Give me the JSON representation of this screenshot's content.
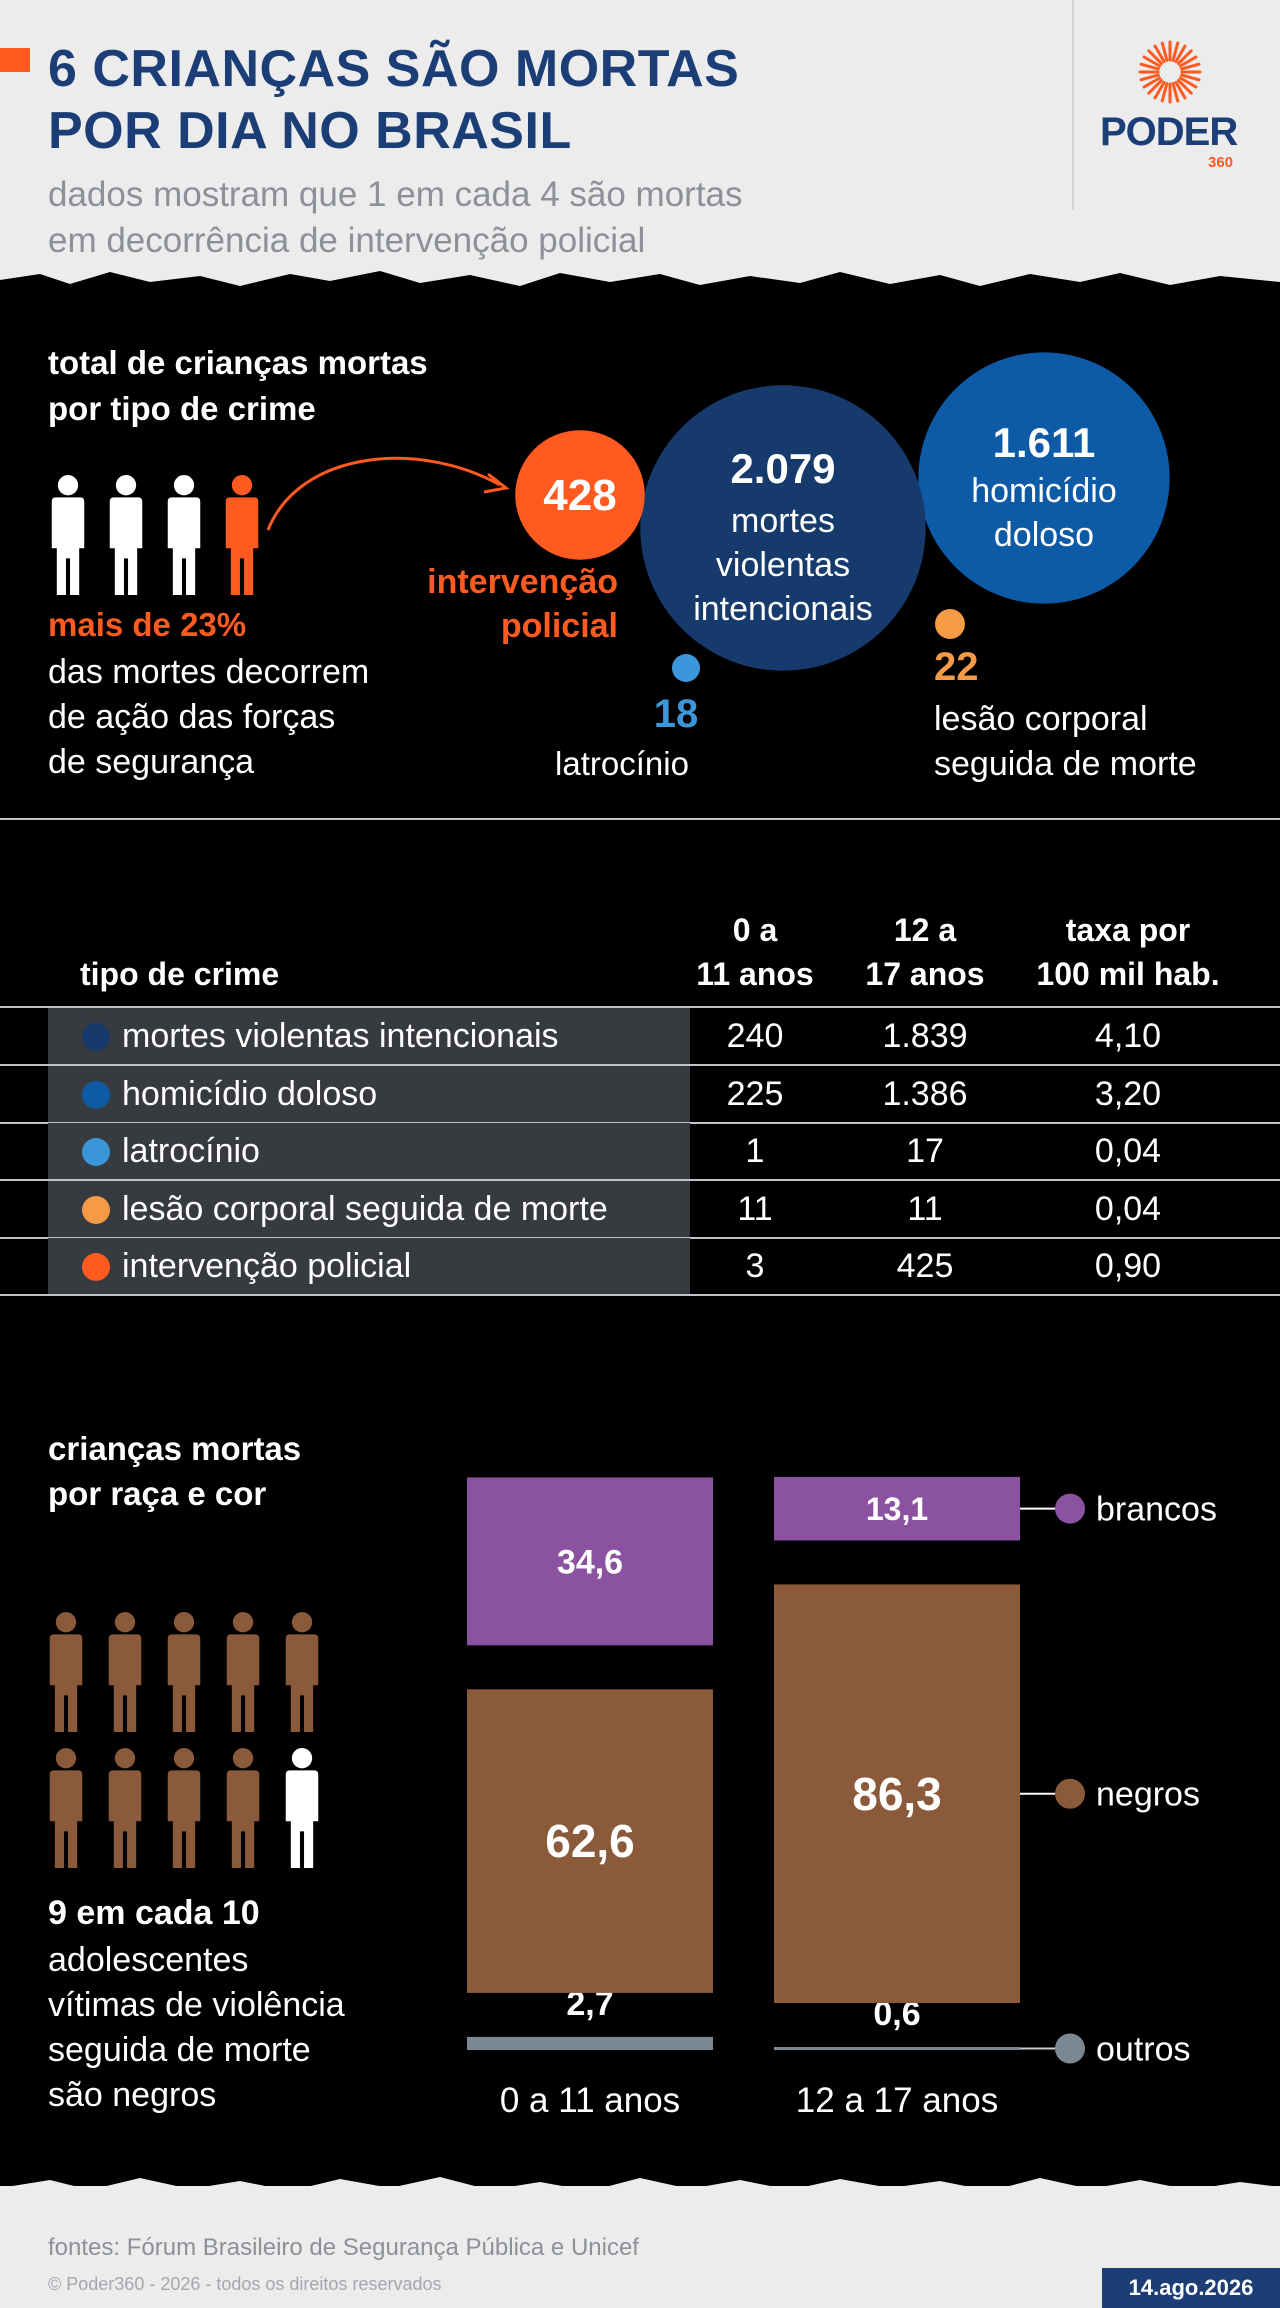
{
  "header": {
    "title_line1": "6 CRIANÇAS SÃO MORTAS",
    "title_line2": "POR DIA NO BRASIL",
    "subtitle_line1": "dados mostram que 1 em cada 4 são mortas",
    "subtitle_line2": "em decorrência de intervenção policial",
    "logo_word": "PODER",
    "logo_number": "360"
  },
  "colors": {
    "navy": "#1c3e77",
    "blue_dark": "#163a6b",
    "blue": "#0d5aa7",
    "blue_light": "#3b97da",
    "orange_light": "#f59a45",
    "orange": "#ff5a1f",
    "purple": "#8a52a0",
    "brown": "#8a5a3b",
    "grey": "#7c8891"
  },
  "section_crime": {
    "heading_line1": "total de crianças mortas",
    "heading_line2": "por tipo de crime",
    "highlight": "mais de 23%",
    "note_line1": "das mortes decorrem",
    "note_line2": "de ação das forças",
    "note_line3": "de segurança",
    "icon": "person-icon"
  },
  "table": {
    "headers": {
      "type": "tipo de crime",
      "col1_line1": "0 a",
      "col1_line2": "11 anos",
      "col2_line1": "12 a",
      "col2_line2": "17 anos",
      "col3_line1": "taxa por",
      "col3_line2": "100 mil hab."
    },
    "rows": [
      {
        "label": "mortes violentas intencionais",
        "a": "240",
        "b": "1.839",
        "rate": "4,10",
        "color": "#163a6b"
      },
      {
        "label": "homicídio doloso",
        "a": "225",
        "b": "1.386",
        "rate": "3,20",
        "color": "#0d5aa7"
      },
      {
        "label": "latrocínio",
        "a": "1",
        "b": "17",
        "rate": "0,04",
        "color": "#3b97da"
      },
      {
        "label": "lesão corporal seguida de morte",
        "a": "11",
        "b": "11",
        "rate": "0,04",
        "color": "#f59a45"
      },
      {
        "label": "intervenção policial",
        "a": "3",
        "b": "425",
        "rate": "0,90",
        "color": "#ff5a1f"
      }
    ]
  },
  "section_race": {
    "heading_line1": "crianças mortas",
    "heading_line2": "por raça e cor",
    "highlight": "9 em cada 10",
    "note_line1": "adolescentes",
    "note_line2": "vítimas de violência",
    "note_line3": "seguida de morte",
    "note_line4": "são negros"
  },
  "footer": {
    "sources": "fontes: Fórum Brasileiro de Segurança Pública e Unicef",
    "copyright": "© Poder360 - 2026 - todos os direitos reservados",
    "date": "14.ago.2026"
  },
  "chart_data": [
    {
      "type": "bubble",
      "series": [
        {
          "label": "mortes violentas intencionais",
          "value": 2079,
          "value_text": "2.079",
          "color": "#163a6b"
        },
        {
          "label": "homicídio doloso",
          "value": 1611,
          "value_text": "1.611",
          "color": "#0d5aa7"
        },
        {
          "label": "intervenção policial",
          "value": 428,
          "value_text": "428",
          "color": "#ff5a1f"
        },
        {
          "label": "lesão corporal seguida de morte",
          "value": 22,
          "value_text": "22",
          "color": "#f59a45"
        },
        {
          "label": "latrocínio",
          "value": 18,
          "value_text": "18",
          "color": "#3b97da"
        }
      ]
    },
    {
      "type": "bar",
      "stacked": true,
      "categories": [
        "0 a 11 anos",
        "12 a 17 anos"
      ],
      "series": [
        {
          "name": "brancos",
          "values": [
            34.6,
            13.1
          ],
          "value_text": [
            "34,6",
            "13,1"
          ],
          "color": "#8a52a0"
        },
        {
          "name": "negros",
          "values": [
            62.6,
            86.3
          ],
          "value_text": [
            "62,6",
            "86,3"
          ],
          "color": "#8a5a3b"
        },
        {
          "name": "outros",
          "values": [
            2.7,
            0.6
          ],
          "value_text": [
            "2,7",
            "0,6"
          ],
          "color": "#7c8891"
        }
      ]
    }
  ]
}
